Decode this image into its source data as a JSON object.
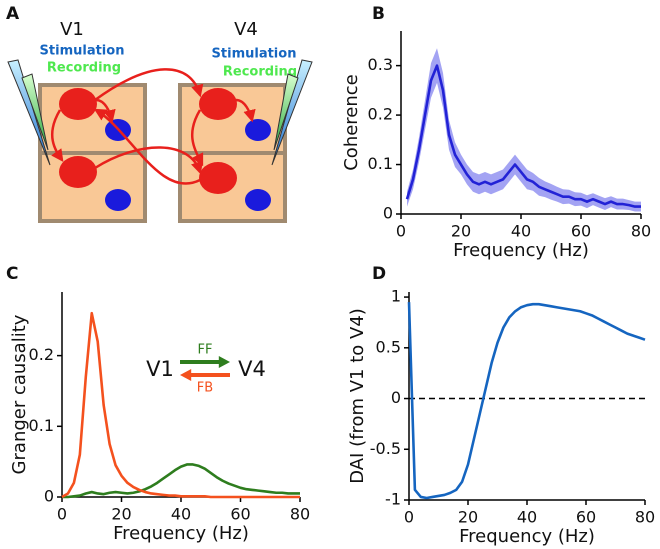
{
  "diagram": {
    "panel_label": "A",
    "areas": [
      "V1",
      "V4"
    ],
    "electrodes": [
      {
        "stimulation": "Stimulation",
        "recording": "Recording"
      },
      {
        "stimulation": "Stimulation",
        "recording": "Recording"
      }
    ]
  },
  "chart_data": [
    {
      "type": "line",
      "panel_label": "B",
      "xlabel": "Frequency (Hz)",
      "ylabel": "Coherence",
      "x": [
        2,
        4,
        6,
        8,
        10,
        12,
        14,
        16,
        18,
        20,
        22,
        24,
        26,
        28,
        30,
        32,
        34,
        36,
        38,
        40,
        42,
        44,
        46,
        48,
        50,
        52,
        54,
        56,
        58,
        60,
        62,
        64,
        66,
        68,
        70,
        72,
        74,
        76,
        78,
        80
      ],
      "series": [
        {
          "color": "#2222d6",
          "band_color": "#8c8cf0",
          "values": [
            0.03,
            0.07,
            0.13,
            0.2,
            0.27,
            0.3,
            0.25,
            0.16,
            0.12,
            0.1,
            0.08,
            0.065,
            0.06,
            0.065,
            0.06,
            0.065,
            0.07,
            0.085,
            0.1,
            0.085,
            0.07,
            0.065,
            0.055,
            0.05,
            0.045,
            0.04,
            0.035,
            0.035,
            0.03,
            0.03,
            0.025,
            0.03,
            0.025,
            0.02,
            0.025,
            0.02,
            0.02,
            0.018,
            0.015,
            0.015
          ],
          "error": [
            0.015,
            0.02,
            0.025,
            0.03,
            0.035,
            0.035,
            0.035,
            0.03,
            0.025,
            0.02,
            0.02,
            0.02,
            0.02,
            0.02,
            0.02,
            0.02,
            0.02,
            0.02,
            0.02,
            0.02,
            0.02,
            0.018,
            0.018,
            0.016,
            0.016,
            0.015,
            0.015,
            0.014,
            0.014,
            0.013,
            0.013,
            0.012,
            0.012,
            0.012,
            0.011,
            0.011,
            0.011,
            0.01,
            0.01,
            0.01
          ]
        }
      ],
      "xlim": [
        0,
        80
      ],
      "xticks": [
        0,
        20,
        40,
        60,
        80
      ],
      "ylim": [
        0,
        0.37
      ],
      "yticks": [
        0,
        0.1,
        0.2,
        0.3
      ]
    },
    {
      "type": "line",
      "panel_label": "C",
      "xlabel": "Frequency (Hz)",
      "ylabel": "Granger causality",
      "annotations": [
        "V1",
        "V4"
      ],
      "x": [
        0,
        2,
        4,
        6,
        8,
        10,
        12,
        14,
        16,
        18,
        20,
        22,
        24,
        26,
        28,
        30,
        32,
        34,
        36,
        38,
        40,
        42,
        44,
        46,
        48,
        50,
        52,
        54,
        56,
        58,
        60,
        62,
        64,
        66,
        68,
        70,
        72,
        74,
        76,
        78,
        80
      ],
      "series": [
        {
          "name": "FF",
          "color": "#2e7d1e",
          "direction": "right",
          "values": [
            0,
            0,
            0.001,
            0.002,
            0.005,
            0.007,
            0.005,
            0.004,
            0.006,
            0.007,
            0.006,
            0.005,
            0.006,
            0.008,
            0.011,
            0.015,
            0.02,
            0.026,
            0.032,
            0.038,
            0.043,
            0.046,
            0.046,
            0.044,
            0.04,
            0.034,
            0.028,
            0.023,
            0.019,
            0.016,
            0.013,
            0.011,
            0.01,
            0.009,
            0.008,
            0.007,
            0.006,
            0.006,
            0.005,
            0.005,
            0.005
          ]
        },
        {
          "name": "FB",
          "color": "#f4511e",
          "direction": "left",
          "values": [
            0,
            0.005,
            0.02,
            0.06,
            0.17,
            0.26,
            0.22,
            0.13,
            0.075,
            0.045,
            0.03,
            0.02,
            0.014,
            0.01,
            0.007,
            0.005,
            0.004,
            0.003,
            0.002,
            0.002,
            0.001,
            0.001,
            0.001,
            0.001,
            0.001,
            0,
            0,
            0,
            0,
            0,
            0,
            0,
            0,
            0,
            0,
            0,
            0,
            0,
            0,
            0,
            0
          ]
        }
      ],
      "xlim": [
        0,
        80
      ],
      "xticks": [
        0,
        20,
        40,
        60,
        80
      ],
      "ylim": [
        0,
        0.29
      ],
      "yticks": [
        0,
        0.1,
        0.2
      ]
    },
    {
      "type": "line",
      "panel_label": "D",
      "xlabel": "Frequency (Hz)",
      "ylabel": "DAI (from V1 to V4)",
      "x": [
        0,
        2,
        4,
        6,
        8,
        10,
        12,
        14,
        16,
        18,
        20,
        22,
        24,
        26,
        28,
        30,
        32,
        34,
        36,
        38,
        40,
        42,
        44,
        46,
        48,
        50,
        52,
        54,
        56,
        58,
        60,
        62,
        64,
        66,
        68,
        70,
        72,
        74,
        76,
        78,
        80
      ],
      "series": [
        {
          "color": "#1565c0",
          "values": [
            0.95,
            -0.9,
            -0.97,
            -0.98,
            -0.97,
            -0.96,
            -0.95,
            -0.93,
            -0.9,
            -0.82,
            -0.65,
            -0.4,
            -0.15,
            0.1,
            0.35,
            0.55,
            0.7,
            0.8,
            0.86,
            0.9,
            0.92,
            0.93,
            0.93,
            0.92,
            0.91,
            0.9,
            0.89,
            0.88,
            0.87,
            0.86,
            0.84,
            0.82,
            0.79,
            0.76,
            0.73,
            0.7,
            0.67,
            0.64,
            0.62,
            0.6,
            0.58
          ]
        }
      ],
      "hline": 0,
      "xlim": [
        0,
        80
      ],
      "xticks": [
        0,
        20,
        40,
        60,
        80
      ],
      "ylim": [
        -1,
        1.05
      ],
      "yticks": [
        -1,
        -0.5,
        0,
        0.5,
        1
      ]
    }
  ]
}
